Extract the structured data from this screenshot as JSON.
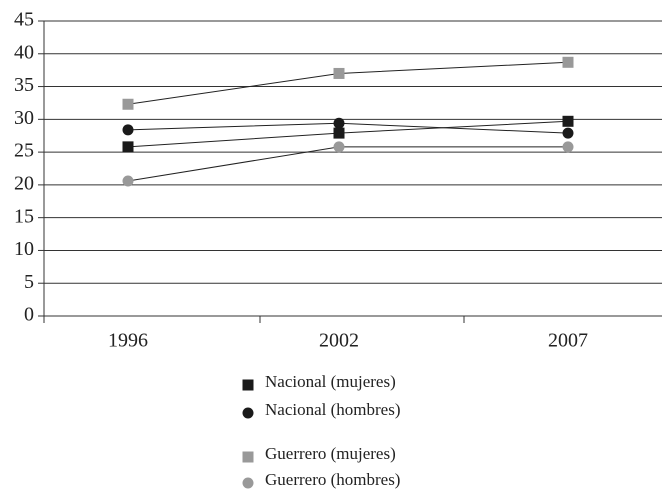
{
  "chart_data": {
    "type": "line",
    "categories": [
      "1996",
      "2002",
      "2007"
    ],
    "series": [
      {
        "name": "Nacional (mujeres)",
        "color": "#1a1a1a",
        "marker": "square",
        "values": [
          25.8,
          27.9,
          29.7
        ]
      },
      {
        "name": "Nacional (hombres)",
        "color": "#1a1a1a",
        "marker": "circle",
        "values": [
          28.4,
          29.4,
          27.9
        ]
      },
      {
        "name": "Guerrero (mujeres)",
        "color": "#999999",
        "marker": "square",
        "values": [
          32.3,
          37.0,
          38.7
        ]
      },
      {
        "name": "Guerrero (hombres)",
        "color": "#999999",
        "marker": "circle",
        "values": [
          20.6,
          25.8,
          25.8
        ]
      }
    ],
    "ylim": [
      0,
      45
    ],
    "yticks": [
      0,
      5,
      10,
      15,
      20,
      25,
      30,
      35,
      40,
      45
    ],
    "grid": true,
    "legend": "bottom"
  }
}
